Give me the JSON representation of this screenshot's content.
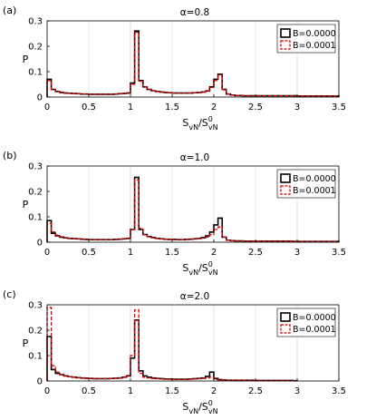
{
  "chart_data": [
    {
      "type": "histogram-step",
      "panel_label": "(a)",
      "title": "α=0.8",
      "xlabel": "S_vN/S^0_vN",
      "ylabel": "P",
      "xlim": [
        0,
        3.5
      ],
      "ylim": [
        0,
        0.3
      ],
      "xticks": [
        "0",
        "0.5",
        "1",
        "1.5",
        "2",
        "2.5",
        "3",
        "3.5"
      ],
      "yticks": [
        "0",
        "0.1",
        "0.2",
        "0.3"
      ],
      "xgrid": true,
      "legend": "top-right",
      "bin_width": 0.05,
      "series": [
        {
          "name": "B=0.0000",
          "color": "#000000",
          "style": "solid",
          "values": [
            0.07,
            0.03,
            0.022,
            0.018,
            0.016,
            0.015,
            0.014,
            0.013,
            0.012,
            0.012,
            0.011,
            0.011,
            0.011,
            0.011,
            0.011,
            0.011,
            0.012,
            0.013,
            0.014,
            0.016,
            0.055,
            0.26,
            0.065,
            0.04,
            0.03,
            0.025,
            0.022,
            0.02,
            0.018,
            0.017,
            0.016,
            0.016,
            0.016,
            0.016,
            0.016,
            0.017,
            0.018,
            0.02,
            0.024,
            0.04,
            0.07,
            0.09,
            0.03,
            0.012,
            0.008,
            0.006,
            0.006,
            0.005,
            0.005,
            0.005,
            0.005,
            0.005,
            0.005,
            0.005,
            0.005,
            0.005,
            0.005,
            0.005,
            0.005,
            0.005,
            0.004,
            0.004,
            0.004,
            0.004,
            0.004,
            0.004,
            0.004,
            0.004,
            0.004,
            0.004
          ]
        },
        {
          "name": "B=0.0001",
          "color": "#e00000",
          "style": "dashed",
          "values": [
            0.065,
            0.03,
            0.022,
            0.018,
            0.016,
            0.015,
            0.014,
            0.013,
            0.012,
            0.012,
            0.011,
            0.011,
            0.011,
            0.011,
            0.011,
            0.011,
            0.012,
            0.013,
            0.014,
            0.016,
            0.05,
            0.255,
            0.062,
            0.04,
            0.03,
            0.025,
            0.022,
            0.02,
            0.018,
            0.017,
            0.016,
            0.016,
            0.016,
            0.016,
            0.016,
            0.017,
            0.018,
            0.02,
            0.024,
            0.038,
            0.065,
            0.088,
            0.03,
            0.012,
            0.008,
            0.006,
            0.006,
            0.005,
            0.005,
            0.005,
            0.005,
            0.005,
            0.005,
            0.005,
            0.005,
            0.005,
            0.005,
            0.005,
            0.005,
            0.005,
            0.004,
            0.004,
            0.004,
            0.004,
            0.004,
            0.004,
            0.004,
            0.004,
            0.004,
            0.004
          ]
        }
      ]
    },
    {
      "type": "histogram-step",
      "panel_label": "(b)",
      "title": "α=1.0",
      "xlabel": "S_vN/S^0_vN",
      "ylabel": "P",
      "xlim": [
        0,
        3.5
      ],
      "ylim": [
        0,
        0.3
      ],
      "xticks": [
        "0",
        "0.5",
        "1",
        "1.5",
        "2",
        "2.5",
        "3",
        "3.5"
      ],
      "yticks": [
        "0",
        "0.1",
        "0.2",
        "0.3"
      ],
      "xgrid": true,
      "legend": "top-right",
      "bin_width": 0.05,
      "series": [
        {
          "name": "B=0.0000",
          "color": "#000000",
          "style": "solid",
          "values": [
            0.085,
            0.035,
            0.025,
            0.02,
            0.017,
            0.015,
            0.014,
            0.013,
            0.012,
            0.011,
            0.01,
            0.01,
            0.01,
            0.01,
            0.01,
            0.01,
            0.011,
            0.012,
            0.013,
            0.015,
            0.05,
            0.255,
            0.05,
            0.03,
            0.022,
            0.018,
            0.015,
            0.013,
            0.012,
            0.011,
            0.011,
            0.01,
            0.01,
            0.011,
            0.012,
            0.013,
            0.015,
            0.018,
            0.025,
            0.04,
            0.068,
            0.095,
            0.02,
            0.008,
            0.006,
            0.005,
            0.005,
            0.004,
            0.004,
            0.004,
            0.004,
            0.004,
            0.004,
            0.004,
            0.004,
            0.004,
            0.004,
            0.004,
            0.004,
            0.003,
            0.003,
            0.003,
            0.003,
            0.003,
            0.003,
            0.003,
            0.003,
            0.003,
            0.003,
            0.003
          ]
        },
        {
          "name": "B=0.0001",
          "color": "#e00000",
          "style": "dashed",
          "values": [
            0.075,
            0.04,
            0.028,
            0.022,
            0.018,
            0.016,
            0.014,
            0.013,
            0.012,
            0.011,
            0.01,
            0.01,
            0.01,
            0.01,
            0.01,
            0.01,
            0.011,
            0.012,
            0.013,
            0.015,
            0.05,
            0.245,
            0.055,
            0.03,
            0.022,
            0.018,
            0.015,
            0.013,
            0.012,
            0.011,
            0.011,
            0.01,
            0.01,
            0.011,
            0.012,
            0.013,
            0.015,
            0.016,
            0.02,
            0.03,
            0.05,
            0.06,
            0.02,
            0.008,
            0.006,
            0.005,
            0.005,
            0.004,
            0.004,
            0.004,
            0.004,
            0.004,
            0.004,
            0.004,
            0.004,
            0.004,
            0.004,
            0.004,
            0.004,
            0.003,
            0.003,
            0.003,
            0.003,
            0.003,
            0.003,
            0.003,
            0.003,
            0.003,
            0.003,
            0.003
          ]
        }
      ]
    },
    {
      "type": "histogram-step",
      "panel_label": "(c)",
      "title": "α=2.0",
      "xlabel": "S_vN/S^0_vN",
      "ylabel": "P",
      "xlim": [
        0,
        3.5
      ],
      "ylim": [
        0,
        0.3
      ],
      "xticks": [
        "0",
        "0.5",
        "1",
        "1.5",
        "2",
        "2.5",
        "3",
        "3.5"
      ],
      "yticks": [
        "0",
        "0.1",
        "0.2",
        "0.3"
      ],
      "xgrid": true,
      "legend": "top-right",
      "bin_width": 0.05,
      "series": [
        {
          "name": "B=0.0000",
          "color": "#000000",
          "style": "solid",
          "values": [
            0.175,
            0.045,
            0.03,
            0.025,
            0.02,
            0.017,
            0.015,
            0.013,
            0.012,
            0.011,
            0.01,
            0.009,
            0.009,
            0.009,
            0.009,
            0.01,
            0.011,
            0.012,
            0.015,
            0.02,
            0.09,
            0.24,
            0.04,
            0.02,
            0.015,
            0.012,
            0.01,
            0.009,
            0.008,
            0.008,
            0.007,
            0.007,
            0.007,
            0.007,
            0.008,
            0.009,
            0.01,
            0.012,
            0.018,
            0.035,
            0.01,
            0.005,
            0.004,
            0.003,
            0.003,
            0.003,
            0.003,
            0.003,
            0.003,
            0.003,
            0.002,
            0.002,
            0.002,
            0.002,
            0.002,
            0.002,
            0.002,
            0.002,
            0.002,
            0.001
          ]
        },
        {
          "name": "B=0.0001",
          "color": "#e00000",
          "style": "dashed",
          "values": [
            0.29,
            0.06,
            0.035,
            0.025,
            0.02,
            0.017,
            0.015,
            0.013,
            0.012,
            0.011,
            0.01,
            0.009,
            0.009,
            0.009,
            0.009,
            0.01,
            0.011,
            0.012,
            0.015,
            0.022,
            0.1,
            0.28,
            0.03,
            0.015,
            0.012,
            0.01,
            0.009,
            0.008,
            0.007,
            0.007,
            0.006,
            0.006,
            0.006,
            0.006,
            0.007,
            0.008,
            0.009,
            0.01,
            0.012,
            0.015,
            0.006,
            0.004,
            0.003,
            0.003,
            0.003,
            0.003,
            0.003,
            0.003,
            0.003,
            0.003,
            0.002,
            0.002,
            0.002,
            0.002,
            0.002,
            0.002,
            0.002,
            0.002,
            0.002,
            0.001
          ]
        }
      ]
    }
  ]
}
